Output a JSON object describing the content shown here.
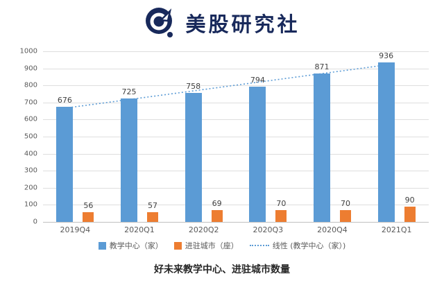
{
  "header": {
    "brand": "美股研究社"
  },
  "chart_data": {
    "type": "bar",
    "categories": [
      "2019Q4",
      "2020Q1",
      "2020Q2",
      "2020Q3",
      "2020Q4",
      "2021Q1"
    ],
    "series": [
      {
        "name": "教学中心（家）",
        "color": "#5B9BD5",
        "values": [
          676,
          725,
          758,
          794,
          871,
          936
        ]
      },
      {
        "name": "进驻城市（座）",
        "color": "#ED7D31",
        "values": [
          56,
          57,
          69,
          70,
          70,
          90
        ]
      }
    ],
    "trendline": {
      "name": "线性 (教学中心（家）)",
      "based_on": "教学中心（家）",
      "style": "dotted",
      "color": "#5B9BD5"
    },
    "ylabel": "",
    "xlabel": "",
    "ylim": [
      0,
      1000
    ],
    "ytick_step": 100,
    "grid": true,
    "legend_position": "bottom"
  },
  "caption": "好未来教学中心、进驻城市数量",
  "colors": {
    "brand_navy": "#18295B",
    "bar_blue": "#5B9BD5",
    "bar_orange": "#ED7D31",
    "gridline": "#DEDEDE",
    "axis_text": "#595959"
  }
}
